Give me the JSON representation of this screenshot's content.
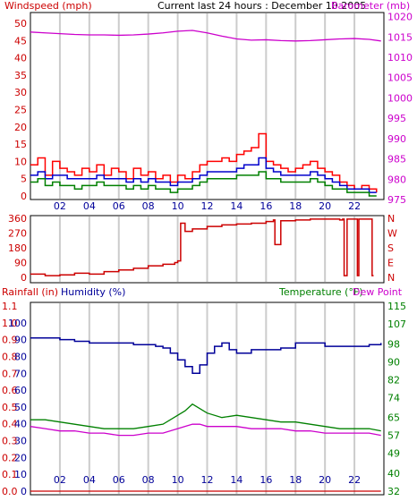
{
  "header": {
    "wind_label": "Windspeed (mph)",
    "title": "Current last 24 hours : December 10 2005",
    "baro_label": "Barometer (mb)",
    "rain_label": "Rainfall (in)",
    "humidity_label": "Humidity (%)",
    "temp_label": "Temperature (°F)",
    "dew_label": "Dew Point"
  },
  "colors": {
    "background": "#ffffff",
    "frame": "#000000",
    "grid": "#cccccc",
    "wind_gust": "#ff0000",
    "wind_avg": "#0000cc",
    "wind_low": "#008000",
    "barometer": "#cc00cc",
    "direction": "#cc0000",
    "humidity": "#000099",
    "temperature": "#008000",
    "dew_point": "#cc00cc",
    "rain": "#cc0000"
  },
  "chart_data": [
    {
      "type": "line",
      "name": "wind-barometer",
      "x_ticks": [
        "02",
        "04",
        "06",
        "08",
        "10",
        "12",
        "14",
        "16",
        "18",
        "20",
        "22"
      ],
      "left_axis": {
        "label": "Windspeed (mph)",
        "ticks": [
          0,
          5,
          10,
          15,
          20,
          25,
          30,
          35,
          40,
          45,
          50
        ],
        "ylim": [
          0,
          50
        ]
      },
      "right_axis": {
        "label": "Barometer (mb)",
        "ticks": [
          975,
          980,
          985,
          990,
          995,
          1000,
          1005,
          1010,
          1015,
          1020
        ],
        "ylim": [
          975,
          1021
        ]
      },
      "xlim": [
        0,
        24
      ],
      "grid": true,
      "series": [
        {
          "axis": "left",
          "color": "#ff0000",
          "x": [
            0,
            0.5,
            1,
            1.5,
            2,
            2.5,
            3,
            3.5,
            4,
            4.5,
            5,
            5.5,
            6,
            6.5,
            7,
            7.5,
            8,
            8.5,
            9,
            9.5,
            10,
            10.5,
            11,
            11.5,
            12,
            12.5,
            13,
            13.5,
            14,
            14.5,
            15,
            15.5,
            16,
            16.5,
            17,
            17.5,
            18,
            18.5,
            19,
            19.5,
            20,
            20.5,
            21,
            21.5,
            22,
            22.5,
            23,
            23.5
          ],
          "y": [
            9,
            11,
            6,
            10,
            8,
            7,
            6,
            8,
            7,
            9,
            6,
            8,
            7,
            5,
            8,
            6,
            7,
            5,
            6,
            4,
            6,
            5,
            7,
            9,
            10,
            10,
            11,
            10,
            12,
            13,
            14,
            18,
            10,
            9,
            8,
            7,
            8,
            9,
            10,
            8,
            7,
            6,
            4,
            3,
            2,
            3,
            2,
            1
          ]
        },
        {
          "axis": "left",
          "color": "#0000cc",
          "x": [
            0,
            0.5,
            1,
            1.5,
            2,
            2.5,
            3,
            3.5,
            4,
            4.5,
            5,
            5.5,
            6,
            6.5,
            7,
            7.5,
            8,
            8.5,
            9,
            9.5,
            10,
            10.5,
            11,
            11.5,
            12,
            12.5,
            13,
            13.5,
            14,
            14.5,
            15,
            15.5,
            16,
            16.5,
            17,
            17.5,
            18,
            18.5,
            19,
            19.5,
            20,
            20.5,
            21,
            21.5,
            22,
            22.5,
            23,
            23.5
          ],
          "y": [
            6,
            7,
            5,
            6,
            6,
            5,
            5,
            5,
            5,
            6,
            5,
            5,
            5,
            4,
            5,
            4,
            5,
            4,
            4,
            3,
            4,
            4,
            5,
            6,
            7,
            7,
            7,
            7,
            8,
            9,
            9,
            11,
            8,
            7,
            6,
            6,
            6,
            6,
            7,
            6,
            5,
            4,
            3,
            2,
            2,
            2,
            1,
            1
          ]
        },
        {
          "axis": "left",
          "color": "#008000",
          "x": [
            0,
            0.5,
            1,
            1.5,
            2,
            2.5,
            3,
            3.5,
            4,
            4.5,
            5,
            5.5,
            6,
            6.5,
            7,
            7.5,
            8,
            8.5,
            9,
            9.5,
            10,
            10.5,
            11,
            11.5,
            12,
            12.5,
            13,
            13.5,
            14,
            14.5,
            15,
            15.5,
            16,
            16.5,
            17,
            17.5,
            18,
            18.5,
            19,
            19.5,
            20,
            20.5,
            21,
            21.5,
            22,
            22.5,
            23,
            23.5
          ],
          "y": [
            4,
            5,
            3,
            4,
            3,
            3,
            2,
            3,
            3,
            4,
            3,
            3,
            3,
            2,
            3,
            2,
            3,
            2,
            2,
            1,
            2,
            2,
            3,
            4,
            5,
            5,
            5,
            5,
            6,
            6,
            6,
            7,
            5,
            5,
            4,
            4,
            4,
            4,
            5,
            4,
            3,
            2,
            2,
            1,
            1,
            1,
            0,
            0
          ]
        },
        {
          "axis": "right",
          "color": "#cc00cc",
          "x": [
            0,
            1,
            2,
            3,
            4,
            5,
            6,
            7,
            8,
            9,
            10,
            11,
            12,
            13,
            14,
            15,
            16,
            17,
            18,
            19,
            20,
            21,
            22,
            23,
            23.8
          ],
          "y": [
            1016.2,
            1016.0,
            1015.8,
            1015.6,
            1015.5,
            1015.5,
            1015.4,
            1015.5,
            1015.7,
            1016.0,
            1016.4,
            1016.6,
            1016.0,
            1015.2,
            1014.5,
            1014.2,
            1014.3,
            1014.1,
            1014.0,
            1014.1,
            1014.3,
            1014.5,
            1014.6,
            1014.4,
            1014.0
          ]
        }
      ]
    },
    {
      "type": "line",
      "name": "wind-direction",
      "left_axis": {
        "ticks": [
          0,
          90,
          180,
          270,
          360
        ],
        "ylim": [
          0,
          360
        ]
      },
      "right_axis": {
        "ticks": [
          "N",
          "W",
          "S",
          "E",
          "N"
        ]
      },
      "xlim": [
        0,
        24
      ],
      "grid": true,
      "series": [
        {
          "color": "#cc0000",
          "x": [
            0,
            1,
            2,
            3,
            4,
            5,
            6,
            7,
            8,
            9,
            9.8,
            10,
            10.2,
            10.5,
            11,
            12,
            13,
            14,
            15,
            16,
            16.5,
            16.6,
            17,
            18,
            19,
            20,
            21,
            21.2,
            21.3,
            21.5,
            22,
            22.2,
            22.3,
            22.5,
            23,
            23.2,
            23.3
          ],
          "y": [
            20,
            10,
            15,
            25,
            20,
            35,
            45,
            55,
            70,
            80,
            90,
            100,
            330,
            280,
            295,
            310,
            320,
            325,
            330,
            340,
            350,
            200,
            345,
            350,
            355,
            355,
            350,
            355,
            10,
            355,
            355,
            10,
            355,
            355,
            355,
            10,
            10
          ]
        }
      ]
    },
    {
      "type": "line",
      "name": "humidity-temperature-rain",
      "left_axis_rain": {
        "label": "Rainfall (in)",
        "ticks": [
          "0.0",
          "0.1",
          "0.2",
          "0.3",
          "0.4",
          "0.5",
          "0.6",
          "0.7",
          "0.8",
          "0.9",
          "1.0",
          "1.1"
        ],
        "ylim": [
          0,
          1.1
        ]
      },
      "left_axis_humidity": {
        "label": "Humidity (%)",
        "ticks": [
          0,
          10,
          20,
          30,
          40,
          50,
          60,
          70,
          80,
          90,
          100
        ],
        "ylim": [
          0,
          110
        ]
      },
      "right_axis": {
        "label": "Temperature (°F)",
        "ticks": [
          32,
          40,
          49,
          57,
          65,
          74,
          82,
          90,
          98,
          107,
          115
        ],
        "ylim": [
          32,
          115
        ]
      },
      "xlim": [
        0,
        24
      ],
      "grid": true,
      "series": [
        {
          "name": "Humidity (%)",
          "axis": "humidity",
          "color": "#000099",
          "x": [
            0,
            1,
            2,
            3,
            4,
            5,
            6,
            7,
            8,
            8.5,
            9,
            9.5,
            10,
            10.5,
            11,
            11.5,
            12,
            12.5,
            13,
            13.5,
            14,
            15,
            16,
            17,
            18,
            19,
            20,
            21,
            22,
            23,
            23.8
          ],
          "y": [
            91,
            91,
            90,
            89,
            88,
            88,
            88,
            87,
            87,
            86,
            85,
            82,
            78,
            74,
            70,
            75,
            82,
            86,
            88,
            84,
            82,
            84,
            84,
            85,
            88,
            88,
            86,
            86,
            86,
            87,
            88
          ]
        },
        {
          "name": "Temperature (°F)",
          "axis": "right",
          "color": "#008000",
          "x": [
            0,
            1,
            2,
            3,
            4,
            5,
            6,
            7,
            8,
            9,
            10,
            10.5,
            11,
            11.5,
            12,
            13,
            14,
            15,
            16,
            17,
            18,
            19,
            20,
            21,
            22,
            23,
            23.8
          ],
          "y": [
            64,
            64,
            63,
            62,
            61,
            60,
            60,
            60,
            61,
            62,
            66,
            68,
            71,
            69,
            67,
            65,
            66,
            65,
            64,
            63,
            63,
            62,
            61,
            60,
            60,
            60,
            59
          ]
        },
        {
          "name": "Dew Point",
          "axis": "right",
          "color": "#cc00cc",
          "x": [
            0,
            1,
            2,
            3,
            4,
            5,
            6,
            7,
            8,
            9,
            10,
            10.5,
            11,
            11.5,
            12,
            13,
            14,
            15,
            16,
            17,
            18,
            19,
            20,
            21,
            22,
            23,
            23.8
          ],
          "y": [
            61,
            60,
            59,
            59,
            58,
            58,
            57,
            57,
            58,
            58,
            60,
            61,
            62,
            62,
            61,
            61,
            61,
            60,
            60,
            60,
            59,
            59,
            58,
            58,
            58,
            58,
            57
          ]
        },
        {
          "name": "Rainfall (in)",
          "axis": "rain",
          "color": "#cc0000",
          "x": [
            0,
            23.8
          ],
          "y": [
            0.0,
            0.0
          ]
        }
      ]
    }
  ]
}
